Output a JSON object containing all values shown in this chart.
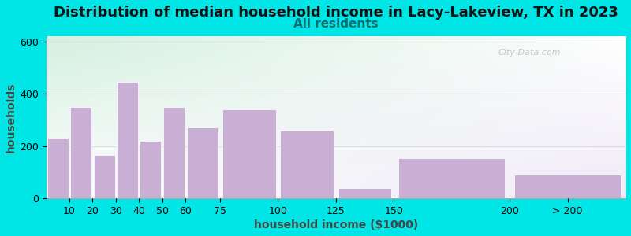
{
  "title": "Distribution of median household income in Lacy-Lakeview, TX in 2023",
  "subtitle": "All residents",
  "xlabel": "household income ($1000)",
  "ylabel": "households",
  "bar_labels": [
    "10",
    "20",
    "30",
    "40",
    "50",
    "60",
    "75",
    "100",
    "125",
    "150",
    "200",
    "> 200"
  ],
  "bar_left_edges": [
    0,
    10,
    20,
    30,
    40,
    50,
    60,
    75,
    100,
    125,
    150,
    200
  ],
  "bar_right_edges": [
    10,
    20,
    30,
    40,
    50,
    60,
    75,
    100,
    125,
    150,
    200,
    250
  ],
  "bar_heights": [
    230,
    350,
    165,
    445,
    220,
    350,
    270,
    340,
    260,
    40,
    155,
    90
  ],
  "bar_color": "#c9afd4",
  "bar_edge_color": "#c9afd4",
  "ylim": [
    0,
    620
  ],
  "yticks": [
    0,
    200,
    400,
    600
  ],
  "xlim": [
    0,
    250
  ],
  "background_color": "#00e5e5",
  "plot_bg_top_left": "#d4f0e0",
  "plot_bg_bottom_right": "#f0eaf8",
  "title_fontsize": 13,
  "subtitle_fontsize": 11,
  "subtitle_color": "#007070",
  "title_color": "#111111",
  "axis_label_fontsize": 10,
  "tick_label_fontsize": 9,
  "watermark": "City-Data.com",
  "grid_color": "#dddddd",
  "spine_color": "#aaaaaa"
}
